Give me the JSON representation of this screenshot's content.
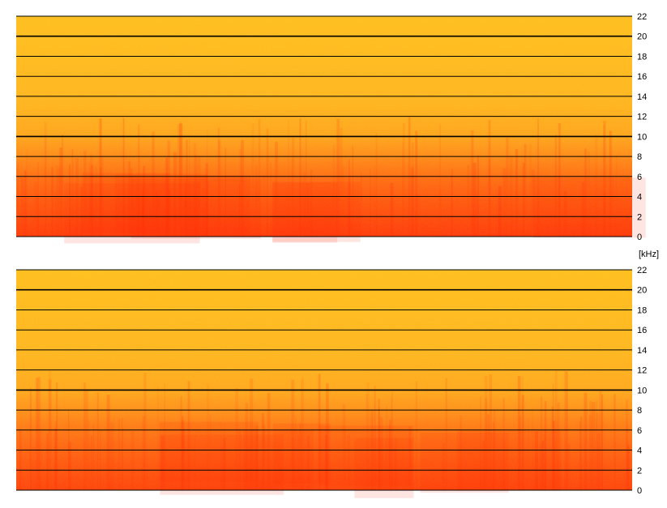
{
  "chart_data": [
    {
      "type": "heatmap",
      "channel": 1,
      "y_ticks": [
        0,
        2,
        4,
        6,
        8,
        10,
        12,
        14,
        16,
        18,
        20,
        22
      ],
      "ylim": [
        0,
        22
      ],
      "grid": true,
      "colormap": [
        "#ff2a0a",
        "#ff5a10",
        "#ff8c1a",
        "#ffb020",
        "#ffd21e"
      ],
      "energy_profile_by_freq": [
        {
          "khz": 0,
          "level": 0.1
        },
        {
          "khz": 2,
          "level": 0.18
        },
        {
          "khz": 4,
          "level": 0.26
        },
        {
          "khz": 6,
          "level": 0.36
        },
        {
          "khz": 8,
          "level": 0.5
        },
        {
          "khz": 10,
          "level": 0.68
        },
        {
          "khz": 14,
          "level": 0.8
        },
        {
          "khz": 22,
          "level": 0.86
        }
      ]
    },
    {
      "type": "heatmap",
      "channel": 2,
      "y_ticks": [
        0,
        2,
        4,
        6,
        8,
        10,
        12,
        14,
        16,
        18,
        20,
        22
      ],
      "ylim": [
        0,
        22
      ],
      "grid": true,
      "colormap": [
        "#ff2a0a",
        "#ff5a10",
        "#ff8c1a",
        "#ffb020",
        "#ffd21e"
      ],
      "energy_profile_by_freq": [
        {
          "khz": 0,
          "level": 0.14
        },
        {
          "khz": 2,
          "level": 0.22
        },
        {
          "khz": 4,
          "level": 0.3
        },
        {
          "khz": 6,
          "level": 0.4
        },
        {
          "khz": 8,
          "level": 0.54
        },
        {
          "khz": 10,
          "level": 0.7
        },
        {
          "khz": 14,
          "level": 0.8
        },
        {
          "khz": 22,
          "level": 0.86
        }
      ]
    }
  ],
  "axis": {
    "unit_label": "[kHz]"
  },
  "colors": {
    "low": "#ff2a0a",
    "mid": "#ff8c1a",
    "high": "#ffd21e",
    "grid": "#000000"
  }
}
